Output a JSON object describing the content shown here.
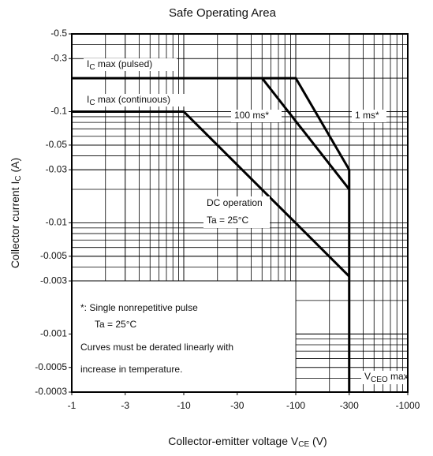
{
  "chart_data": {
    "type": "line",
    "title": "Safe Operating Area",
    "x_label": {
      "main": "Collector-emitter voltage  V",
      "sub": "CE",
      "rest": "   (V)"
    },
    "y_label": {
      "main": "Collector current   I",
      "sub": "C",
      "rest": "   (A)"
    },
    "xscale": "log",
    "yscale": "log",
    "grid": true,
    "xlim": [
      -1,
      -1000
    ],
    "xticks": [
      -1,
      -3,
      -10,
      -30,
      -100,
      -300,
      -1000
    ],
    "ylim": [
      -0.5,
      -0.0003
    ],
    "yticks": [
      -0.5,
      -0.3,
      -0.1,
      -0.05,
      -0.03,
      -0.01,
      -0.005,
      -0.003,
      -0.001,
      -0.0005,
      -0.0003
    ],
    "series": [
      {
        "color": "#000000",
        "x": [
          -1,
          -100,
          -300
        ],
        "values": [
          -0.2,
          -0.2,
          -0.03
        ]
      },
      {
        "color": "#000000",
        "x": [
          -50,
          -300
        ],
        "values": [
          -0.2,
          -0.02
        ]
      },
      {
        "color": "#000000",
        "x": [
          -1,
          -10,
          -300
        ],
        "values": [
          -0.1,
          -0.1,
          -0.0033
        ]
      },
      {
        "color": "#000000",
        "x": [
          -300,
          -300
        ],
        "values": [
          -0.03,
          -0.0003
        ]
      }
    ],
    "annotations": {
      "pulsed": {
        "main": "I",
        "sub": "C",
        "rest": " max (pulsed)"
      },
      "continuous": {
        "main": "I",
        "sub": "C",
        "rest": " max (continuous)"
      },
      "ms100": "100 ms*",
      "ms1": "1 ms*",
      "dc": "DC operation",
      "dc_ta": "Ta = 25°C",
      "vceo": {
        "main": "V",
        "sub": "CEO",
        "rest": " max"
      }
    },
    "notes": [
      "*:  Single nonrepetitive pulse",
      "Ta = 25°C",
      "Curves must be derated linearly with",
      "increase in temperature."
    ]
  }
}
